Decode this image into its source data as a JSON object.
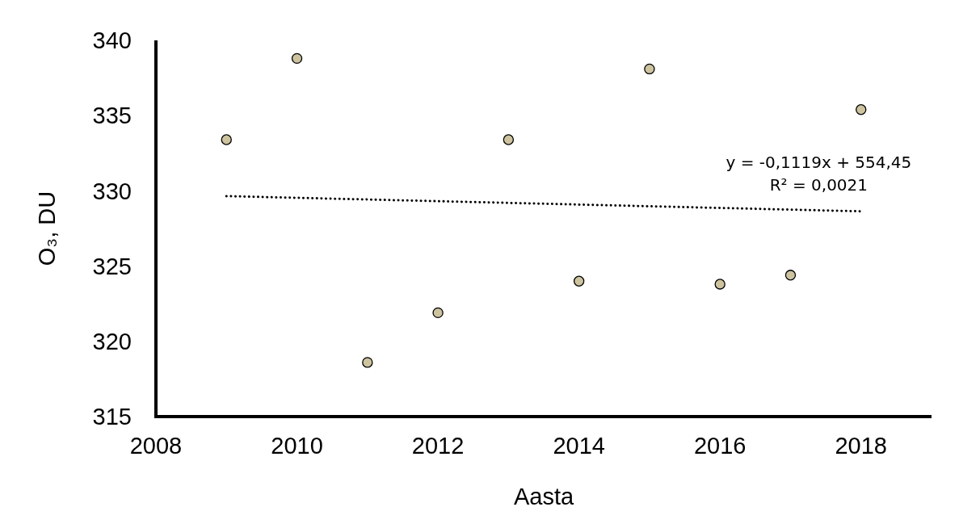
{
  "chart_data": {
    "type": "scatter",
    "xlabel": "Aasta",
    "ylabel": "O₃, DU",
    "x": [
      2009,
      2010,
      2011,
      2012,
      2013,
      2014,
      2015,
      2016,
      2017,
      2018
    ],
    "series": [
      {
        "color": "#cdc39f",
        "marker": "circle",
        "values": [
          333.4,
          338.8,
          318.6,
          321.9,
          333.4,
          324.0,
          338.1,
          323.8,
          324.4,
          335.4
        ]
      },
      {
        "type": "line",
        "color": "#000000",
        "line_style": "dotted",
        "marker": "none",
        "x": [
          2009,
          2018
        ],
        "values": [
          329.65,
          328.64
        ]
      }
    ],
    "xlim": [
      2008,
      2019
    ],
    "xticks": [
      2008,
      2010,
      2012,
      2014,
      2016,
      2018
    ],
    "ylim": [
      315,
      340
    ],
    "yticks": [
      315,
      320,
      325,
      330,
      335,
      340
    ],
    "grid": false,
    "annotations": [
      "y = -0,1119x + 554,45",
      "R² = 0,0021"
    ]
  }
}
